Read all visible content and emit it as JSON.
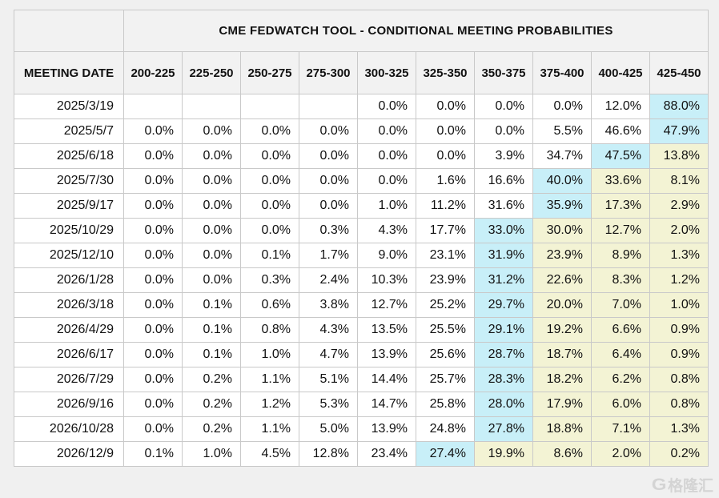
{
  "colors": {
    "page_background": "#f0f0f0",
    "header_background": "#f2f2f2",
    "cell_background": "#ffffff",
    "border": "#c9c9c9",
    "max_highlight": "#c8eff8",
    "tail_highlight": "#f3f3d4",
    "text": "#111111"
  },
  "table": {
    "title": "CME FEDWATCH TOOL - CONDITIONAL MEETING PROBABILITIES",
    "row_header_label": "MEETING DATE",
    "rate_columns": [
      "200-225",
      "225-250",
      "250-275",
      "275-300",
      "300-325",
      "325-350",
      "350-375",
      "375-400",
      "400-425",
      "425-450"
    ],
    "rows": [
      {
        "date": "2025/3/19",
        "values": [
          "",
          "",
          "",
          "",
          "0.0%",
          "0.0%",
          "0.0%",
          "0.0%",
          "12.0%",
          "88.0%"
        ],
        "highlights": [
          "",
          "",
          "",
          "",
          "",
          "",
          "",
          "",
          "",
          "c"
        ]
      },
      {
        "date": "2025/5/7",
        "values": [
          "0.0%",
          "0.0%",
          "0.0%",
          "0.0%",
          "0.0%",
          "0.0%",
          "0.0%",
          "5.5%",
          "46.6%",
          "47.9%"
        ],
        "highlights": [
          "",
          "",
          "",
          "",
          "",
          "",
          "",
          "",
          "",
          "c"
        ]
      },
      {
        "date": "2025/6/18",
        "values": [
          "0.0%",
          "0.0%",
          "0.0%",
          "0.0%",
          "0.0%",
          "0.0%",
          "3.9%",
          "34.7%",
          "47.5%",
          "13.8%"
        ],
        "highlights": [
          "",
          "",
          "",
          "",
          "",
          "",
          "",
          "",
          "c",
          "y"
        ]
      },
      {
        "date": "2025/7/30",
        "values": [
          "0.0%",
          "0.0%",
          "0.0%",
          "0.0%",
          "0.0%",
          "1.6%",
          "16.6%",
          "40.0%",
          "33.6%",
          "8.1%"
        ],
        "highlights": [
          "",
          "",
          "",
          "",
          "",
          "",
          "",
          "c",
          "y",
          "y"
        ]
      },
      {
        "date": "2025/9/17",
        "values": [
          "0.0%",
          "0.0%",
          "0.0%",
          "0.0%",
          "1.0%",
          "11.2%",
          "31.6%",
          "35.9%",
          "17.3%",
          "2.9%"
        ],
        "highlights": [
          "",
          "",
          "",
          "",
          "",
          "",
          "",
          "c",
          "y",
          "y"
        ]
      },
      {
        "date": "2025/10/29",
        "values": [
          "0.0%",
          "0.0%",
          "0.0%",
          "0.3%",
          "4.3%",
          "17.7%",
          "33.0%",
          "30.0%",
          "12.7%",
          "2.0%"
        ],
        "highlights": [
          "",
          "",
          "",
          "",
          "",
          "",
          "c",
          "y",
          "y",
          "y"
        ]
      },
      {
        "date": "2025/12/10",
        "values": [
          "0.0%",
          "0.0%",
          "0.1%",
          "1.7%",
          "9.0%",
          "23.1%",
          "31.9%",
          "23.9%",
          "8.9%",
          "1.3%"
        ],
        "highlights": [
          "",
          "",
          "",
          "",
          "",
          "",
          "c",
          "y",
          "y",
          "y"
        ]
      },
      {
        "date": "2026/1/28",
        "values": [
          "0.0%",
          "0.0%",
          "0.3%",
          "2.4%",
          "10.3%",
          "23.9%",
          "31.2%",
          "22.6%",
          "8.3%",
          "1.2%"
        ],
        "highlights": [
          "",
          "",
          "",
          "",
          "",
          "",
          "c",
          "y",
          "y",
          "y"
        ]
      },
      {
        "date": "2026/3/18",
        "values": [
          "0.0%",
          "0.1%",
          "0.6%",
          "3.8%",
          "12.7%",
          "25.2%",
          "29.7%",
          "20.0%",
          "7.0%",
          "1.0%"
        ],
        "highlights": [
          "",
          "",
          "",
          "",
          "",
          "",
          "c",
          "y",
          "y",
          "y"
        ]
      },
      {
        "date": "2026/4/29",
        "values": [
          "0.0%",
          "0.1%",
          "0.8%",
          "4.3%",
          "13.5%",
          "25.5%",
          "29.1%",
          "19.2%",
          "6.6%",
          "0.9%"
        ],
        "highlights": [
          "",
          "",
          "",
          "",
          "",
          "",
          "c",
          "y",
          "y",
          "y"
        ]
      },
      {
        "date": "2026/6/17",
        "values": [
          "0.0%",
          "0.1%",
          "1.0%",
          "4.7%",
          "13.9%",
          "25.6%",
          "28.7%",
          "18.7%",
          "6.4%",
          "0.9%"
        ],
        "highlights": [
          "",
          "",
          "",
          "",
          "",
          "",
          "c",
          "y",
          "y",
          "y"
        ]
      },
      {
        "date": "2026/7/29",
        "values": [
          "0.0%",
          "0.2%",
          "1.1%",
          "5.1%",
          "14.4%",
          "25.7%",
          "28.3%",
          "18.2%",
          "6.2%",
          "0.8%"
        ],
        "highlights": [
          "",
          "",
          "",
          "",
          "",
          "",
          "c",
          "y",
          "y",
          "y"
        ]
      },
      {
        "date": "2026/9/16",
        "values": [
          "0.0%",
          "0.2%",
          "1.2%",
          "5.3%",
          "14.7%",
          "25.8%",
          "28.0%",
          "17.9%",
          "6.0%",
          "0.8%"
        ],
        "highlights": [
          "",
          "",
          "",
          "",
          "",
          "",
          "c",
          "y",
          "y",
          "y"
        ]
      },
      {
        "date": "2026/10/28",
        "values": [
          "0.0%",
          "0.2%",
          "1.1%",
          "5.0%",
          "13.9%",
          "24.8%",
          "27.8%",
          "18.8%",
          "7.1%",
          "1.3%"
        ],
        "highlights": [
          "",
          "",
          "",
          "",
          "",
          "",
          "c",
          "y",
          "y",
          "y"
        ]
      },
      {
        "date": "2026/12/9",
        "values": [
          "0.1%",
          "1.0%",
          "4.5%",
          "12.8%",
          "23.4%",
          "27.4%",
          "19.9%",
          "8.6%",
          "2.0%",
          "0.2%"
        ],
        "highlights": [
          "",
          "",
          "",
          "",
          "",
          "c",
          "y",
          "y",
          "y",
          "y"
        ]
      }
    ]
  },
  "watermark": {
    "logo_letter": "G",
    "text": "格隆汇"
  }
}
